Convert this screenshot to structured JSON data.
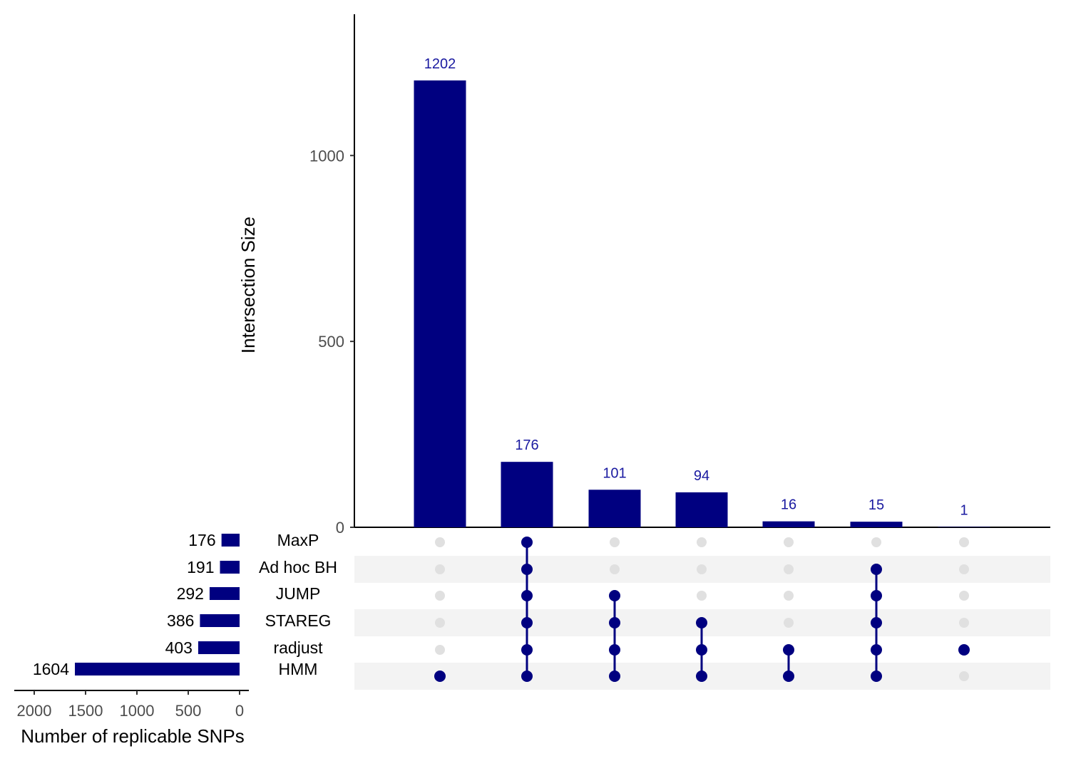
{
  "chart_data": {
    "type": "bar",
    "subtype": "upset",
    "intersection_plot": {
      "ylabel": "Intersection Size",
      "ylim": [
        0,
        1380
      ],
      "yticks": [
        0,
        500,
        1000
      ],
      "values": [
        1202,
        176,
        101,
        94,
        16,
        15,
        1
      ],
      "bar_color": "#000080",
      "label_color": "#1a1aa0"
    },
    "sets": [
      {
        "name": "MaxP",
        "size": 176
      },
      {
        "name": "Ad hoc BH",
        "size": 191
      },
      {
        "name": "JUMP",
        "size": 292
      },
      {
        "name": "STAREG",
        "size": 386
      },
      {
        "name": "radjust",
        "size": 403
      },
      {
        "name": "HMM",
        "size": 1604
      }
    ],
    "set_size_plot": {
      "xlabel": "Number of replicable SNPs",
      "xticks": [
        2000,
        1500,
        1000,
        500,
        0
      ],
      "xlim": [
        0,
        2200
      ]
    },
    "matrix": [
      [
        "HMM"
      ],
      [
        "MaxP",
        "Ad hoc BH",
        "JUMP",
        "STAREG",
        "radjust",
        "HMM"
      ],
      [
        "JUMP",
        "STAREG",
        "radjust",
        "HMM"
      ],
      [
        "STAREG",
        "radjust",
        "HMM"
      ],
      [
        "radjust",
        "HMM"
      ],
      [
        "Ad hoc BH",
        "JUMP",
        "STAREG",
        "radjust",
        "HMM"
      ],
      [
        "radjust"
      ]
    ],
    "active_dot_color": "#000080",
    "inactive_dot_color": "#e0e0e0",
    "stripe_color": "#f3f3f3"
  }
}
